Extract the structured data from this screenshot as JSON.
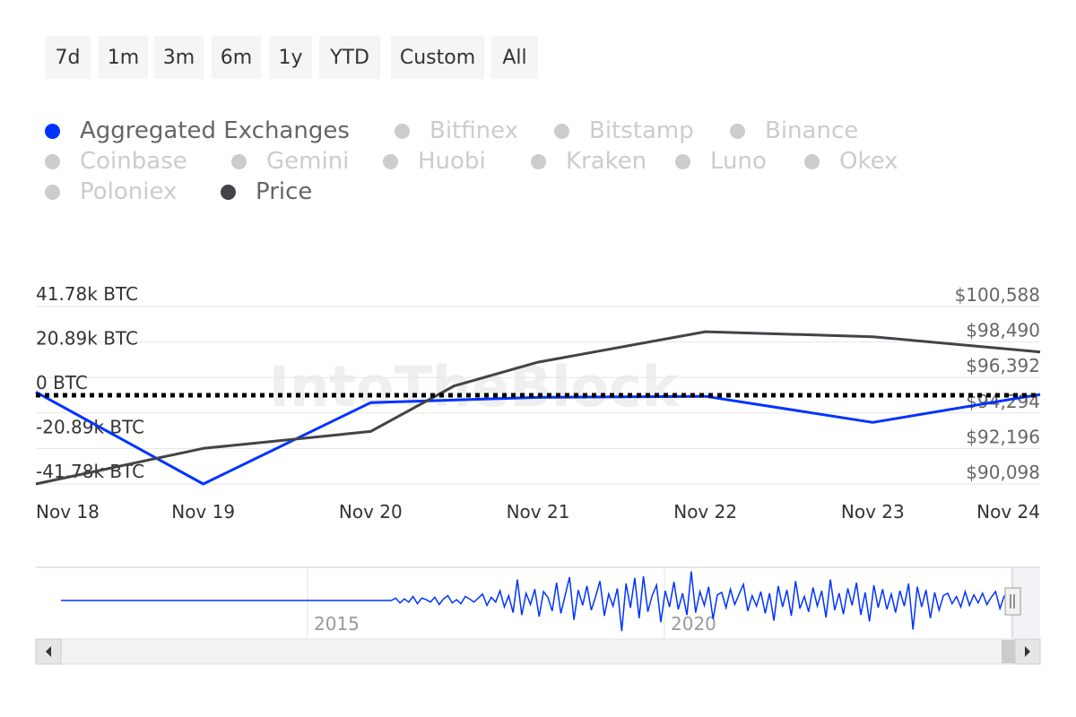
{
  "range_buttons": [
    "7d",
    "1m",
    "3m",
    "6m",
    "1y",
    "YTD",
    "Custom",
    "All"
  ],
  "legend": [
    {
      "label": "Aggregated Exchanges",
      "active": true,
      "color": "#0033ff"
    },
    {
      "label": "Bitfinex",
      "active": false,
      "color": "#cccccc"
    },
    {
      "label": "Bitstamp",
      "active": false,
      "color": "#cccccc"
    },
    {
      "label": "Binance",
      "active": false,
      "color": "#cccccc"
    },
    {
      "label": "Coinbase",
      "active": false,
      "color": "#cccccc"
    },
    {
      "label": "Gemini",
      "active": false,
      "color": "#cccccc"
    },
    {
      "label": "Huobi",
      "active": false,
      "color": "#cccccc"
    },
    {
      "label": "Kraken",
      "active": false,
      "color": "#cccccc"
    },
    {
      "label": "Luno",
      "active": false,
      "color": "#cccccc"
    },
    {
      "label": "Okex",
      "active": false,
      "color": "#cccccc"
    },
    {
      "label": "Poloniex",
      "active": false,
      "color": "#cccccc"
    },
    {
      "label": "Price",
      "active": true,
      "color": "#434348"
    }
  ],
  "watermark": "IntoTheBlock",
  "chart_data": {
    "type": "line",
    "categories": [
      "Nov 18",
      "Nov 19",
      "Nov 20",
      "Nov 21",
      "Nov 22",
      "Nov 23",
      "Nov 24"
    ],
    "y_left": {
      "ticks": [
        "41.78k BTC",
        "20.89k BTC",
        "0 BTC",
        "-20.89k BTC",
        "-41.78k BTC"
      ],
      "tick_values": [
        41780,
        20890,
        0,
        -20890,
        -41780
      ],
      "range": [
        -41780,
        41780
      ]
    },
    "y_right": {
      "ticks": [
        "$100,588",
        "$98,490",
        "$96,392",
        "$94,294",
        "$92,196",
        "$90,098"
      ],
      "tick_values": [
        100588,
        98490,
        96392,
        94294,
        92196,
        90098
      ],
      "range": [
        90098,
        100588
      ]
    },
    "series": [
      {
        "name": "Aggregated Exchanges",
        "axis": "left",
        "color": "#0033ff",
        "x": [
          0,
          1,
          2,
          3,
          4,
          5,
          6
        ],
        "values": [
          1500,
          -41780,
          -3500,
          -1000,
          -500,
          -12800,
          400
        ]
      },
      {
        "name": "Price",
        "axis": "right",
        "color": "#434348",
        "x": [
          0,
          1,
          2,
          2.5,
          3,
          4,
          5,
          6
        ],
        "values": [
          90098,
          92200,
          93200,
          95900,
          97300,
          99100,
          98800,
          97900
        ]
      }
    ],
    "zero_line": {
      "style": "dotted",
      "color": "#000000"
    },
    "navigator": {
      "labels": [
        "2015",
        "2020"
      ],
      "series": [
        0,
        0,
        0,
        0,
        0,
        0,
        0,
        0,
        0,
        0,
        0,
        0,
        0,
        0,
        0,
        0,
        0,
        0,
        0,
        0,
        0,
        0,
        0,
        0,
        0,
        0,
        0,
        0,
        0,
        0,
        0,
        0,
        0,
        0,
        0,
        0,
        0,
        0,
        0,
        0,
        0,
        0,
        0,
        0,
        0,
        0,
        0,
        0,
        0,
        0,
        0,
        0,
        0,
        0,
        0,
        0,
        0,
        0,
        0,
        0,
        0,
        0,
        0,
        0,
        0,
        0,
        0,
        0,
        0,
        0,
        0,
        0,
        0,
        0,
        0,
        0,
        0,
        0.3,
        -0.3,
        0.2,
        -0.2,
        0.5,
        -0.4,
        0.3,
        0.1,
        -0.2,
        0.4,
        -0.5,
        0.2,
        0.6,
        -0.3,
        0.1,
        -0.4,
        0.5,
        0.2,
        -0.2,
        0.3,
        0.8,
        -0.6,
        0.4,
        -0.2,
        1.2,
        -0.8,
        0.6,
        -1.5,
        2.6,
        -1.8,
        0.9,
        -0.5,
        1.4,
        -2.0,
        1.1,
        0.4,
        -1.3,
        2.2,
        -1.6,
        0.7,
        2.9,
        -2.4,
        1.3,
        -0.6,
        1.8,
        -1.2,
        0.5,
        2.4,
        -1.9,
        0.8,
        -0.7,
        1.5,
        -3.8,
        2.1,
        -0.9,
        2.8,
        -2.2,
        3.0,
        -1.4,
        0.6,
        1.9,
        -2.7,
        1.2,
        -0.8,
        2.3,
        -1.1,
        0.9,
        -1.8,
        3.6,
        -1.5,
        1.1,
        -0.6,
        1.7,
        -2.3,
        0.7,
        1.0,
        -0.9,
        1.4,
        -0.5,
        0.8,
        2.0,
        -1.3,
        0.6,
        -0.7,
        1.1,
        -1.6,
        0.9,
        -2.5,
        1.8,
        -0.8,
        1.3,
        -1.9,
        2.4,
        -1.0,
        0.5,
        -1.4,
        1.6,
        -0.7,
        1.2,
        -2.1,
        2.6,
        -1.2,
        0.9,
        -1.7,
        1.5,
        -0.6,
        2.2,
        -1.8,
        1.0,
        -2.6,
        1.9,
        -0.9,
        1.4,
        -1.1,
        0.8,
        -1.5,
        1.2,
        -0.7,
        2.1,
        -3.6,
        1.7,
        -0.8,
        1.3,
        -2.2,
        1.0,
        -1.2,
        0.6,
        0.9,
        -0.4,
        0.5,
        -0.8,
        1.1,
        -0.6,
        0.7,
        -0.3,
        0.9,
        -0.5,
        0.4,
        1.1,
        -1.0,
        0.6
      ]
    }
  }
}
